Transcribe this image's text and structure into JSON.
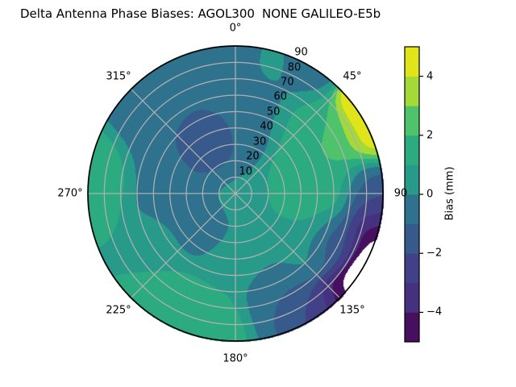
{
  "header": {
    "title_left": "Delta Antenna Phase Biases: AGOL300",
    "title_right": "NONE GALILEO-E5b"
  },
  "chart_data": {
    "type": "polar_contourf",
    "title": "Delta Antenna Phase Biases: AGOL300        NONE GALILEO-E5b",
    "station": "AGOL300",
    "signal": "NONE GALILEO-E5b",
    "colorbar_label": "Bias (mm)",
    "colorbar_range": [
      -5,
      5
    ],
    "levels": [
      -5,
      -4,
      -3,
      -2,
      -1,
      0,
      1,
      2,
      3,
      4,
      5
    ],
    "colorbar_ticks": [
      {
        "value": 4,
        "label": "4"
      },
      {
        "value": 2,
        "label": "2"
      },
      {
        "value": 0,
        "label": "0"
      },
      {
        "value": -2,
        "label": "−2"
      },
      {
        "value": -4,
        "label": "−4"
      }
    ],
    "palette": [
      "#46105f",
      "#46317e",
      "#424086",
      "#38598c",
      "#2e728e",
      "#279a8a",
      "#2cab80",
      "#4ec36b",
      "#a3da37",
      "#e2e41a"
    ],
    "no_data_color": "#ffffff",
    "grid_color": "#b0b0b0",
    "theta_zero": "top",
    "theta_direction": "clockwise",
    "r_max": 90,
    "theta_labels": [
      {
        "angle_deg": 0,
        "label": "0°"
      },
      {
        "angle_deg": 45,
        "label": "45°"
      },
      {
        "angle_deg": 90,
        "label": "90"
      },
      {
        "angle_deg": 135,
        "label": "135°"
      },
      {
        "angle_deg": 180,
        "label": "180°"
      },
      {
        "angle_deg": 225,
        "label": "225°"
      },
      {
        "angle_deg": 270,
        "label": "270°"
      },
      {
        "angle_deg": 315,
        "label": "315°"
      }
    ],
    "r_ticks": [
      {
        "r": 10,
        "label": "10"
      },
      {
        "r": 20,
        "label": "20"
      },
      {
        "r": 30,
        "label": "30"
      },
      {
        "r": 40,
        "label": "40"
      },
      {
        "r": 50,
        "label": "50"
      },
      {
        "r": 60,
        "label": "60"
      },
      {
        "r": 70,
        "label": "70"
      },
      {
        "r": 80,
        "label": "80"
      },
      {
        "r": 90,
        "label": "90"
      }
    ],
    "field_samples_note": "estimated bias field control points read from the plot: [azimuth_deg, radius_deg, bias_mm, smoothing_sigma_deg]",
    "field_samples": [
      [
        56,
        94,
        5.8,
        9
      ],
      [
        66,
        92,
        5.0,
        10
      ],
      [
        60,
        72,
        2.6,
        10
      ],
      [
        45,
        62,
        1.3,
        11
      ],
      [
        78,
        50,
        1.9,
        15
      ],
      [
        97,
        40,
        1.7,
        13
      ],
      [
        30,
        85,
        -0.6,
        9
      ],
      [
        15,
        78,
        0.45,
        9
      ],
      [
        2,
        60,
        -0.8,
        16
      ],
      [
        345,
        78,
        -0.95,
        15
      ],
      [
        322,
        35,
        -1.9,
        13
      ],
      [
        338,
        28,
        -1.6,
        9
      ],
      [
        315,
        65,
        -0.7,
        15
      ],
      [
        290,
        45,
        -0.4,
        13
      ],
      [
        278,
        89,
        1.9,
        13
      ],
      [
        260,
        86,
        1.3,
        8
      ],
      [
        240,
        55,
        0.4,
        13
      ],
      [
        228,
        28,
        -0.75,
        12
      ],
      [
        212,
        83,
        1.9,
        14
      ],
      [
        190,
        78,
        1.6,
        11
      ],
      [
        180,
        42,
        0.6,
        13
      ],
      [
        158,
        66,
        -0.9,
        12
      ],
      [
        150,
        82,
        -1.9,
        8.5
      ],
      [
        125,
        45,
        0.35,
        15
      ],
      [
        88,
        84,
        -1.3,
        11
      ],
      [
        98,
        88,
        -3.2,
        10
      ],
      [
        108,
        92,
        -5.5,
        10
      ],
      [
        120,
        99,
        -8.5,
        10
      ],
      [
        133,
        92,
        -5.2,
        9
      ],
      [
        143,
        88,
        -2.7,
        9
      ],
      [
        0,
        0,
        0.45,
        14
      ],
      [
        265,
        40,
        -0.45,
        12
      ],
      [
        0,
        30,
        -0.6,
        10
      ],
      [
        115,
        68,
        -2.0,
        10
      ]
    ]
  }
}
